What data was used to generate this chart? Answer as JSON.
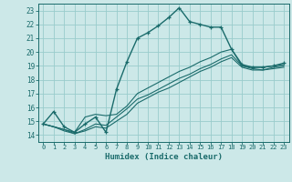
{
  "title": "",
  "xlabel": "Humidex (Indice chaleur)",
  "bg_color": "#cce8e8",
  "grid_color": "#99cccc",
  "line_color": "#1a6b6b",
  "xlim": [
    -0.5,
    23.5
  ],
  "ylim": [
    13.5,
    23.5
  ],
  "xticks": [
    0,
    1,
    2,
    3,
    4,
    5,
    6,
    7,
    8,
    9,
    10,
    11,
    12,
    13,
    14,
    15,
    16,
    17,
    18,
    19,
    20,
    21,
    22,
    23
  ],
  "yticks": [
    14,
    15,
    16,
    17,
    18,
    19,
    20,
    21,
    22,
    23
  ],
  "main_y": [
    14.8,
    15.7,
    14.6,
    14.2,
    14.8,
    15.3,
    14.2,
    17.3,
    19.3,
    21.0,
    21.4,
    21.9,
    22.5,
    23.2,
    22.2,
    22.0,
    21.8,
    21.8,
    20.2,
    19.1,
    18.9,
    18.9,
    19.0,
    19.2
  ],
  "line2_y": [
    14.8,
    14.6,
    14.4,
    14.2,
    15.3,
    15.5,
    15.4,
    15.5,
    16.1,
    17.0,
    17.4,
    17.8,
    18.2,
    18.6,
    18.9,
    19.3,
    19.6,
    20.0,
    20.2,
    19.0,
    18.9,
    18.9,
    19.0,
    19.1
  ],
  "line3_y": [
    14.8,
    14.6,
    14.4,
    14.1,
    14.4,
    14.8,
    14.7,
    15.3,
    15.9,
    16.6,
    16.9,
    17.3,
    17.7,
    18.1,
    18.4,
    18.8,
    19.1,
    19.5,
    19.8,
    19.0,
    18.8,
    18.7,
    18.9,
    19.0
  ],
  "line4_y": [
    14.8,
    14.6,
    14.3,
    14.1,
    14.3,
    14.6,
    14.5,
    15.0,
    15.5,
    16.3,
    16.7,
    17.1,
    17.4,
    17.8,
    18.2,
    18.6,
    18.9,
    19.3,
    19.6,
    18.9,
    18.7,
    18.7,
    18.8,
    18.9
  ]
}
